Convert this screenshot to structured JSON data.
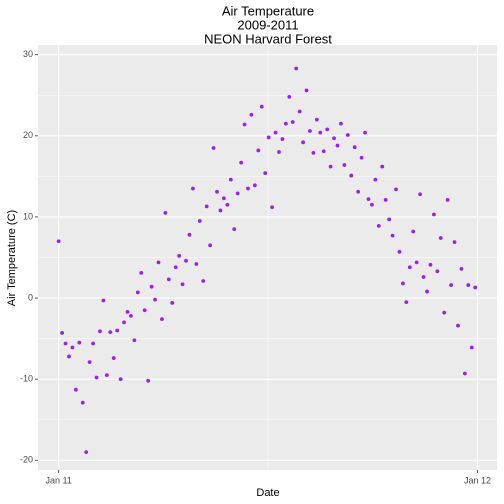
{
  "chart_data": {
    "type": "scatter",
    "title": [
      "Air Temperature",
      "2009-2011",
      "NEON Harvard Forest"
    ],
    "xlabel": "Date",
    "ylabel": "Air Temperature (C)",
    "color": "#9b1ff0",
    "grid": true,
    "xlim": [
      -18,
      382
    ],
    "ylim": [
      -21.2,
      31.2
    ],
    "xticks": [
      {
        "value": 0,
        "label": "Jan 11"
      },
      {
        "value": 365,
        "label": "Jan 12"
      }
    ],
    "yticks": [
      -20,
      -10,
      0,
      10,
      20,
      30
    ],
    "x": [
      0,
      3,
      6,
      9,
      12,
      15,
      18,
      21,
      24,
      27,
      30,
      33,
      36,
      39,
      42,
      45,
      48,
      51,
      54,
      57,
      60,
      63,
      66,
      69,
      72,
      75,
      78,
      81,
      84,
      87,
      90,
      93,
      96,
      99,
      102,
      105,
      108,
      111,
      114,
      117,
      120,
      123,
      126,
      129,
      132,
      135,
      138,
      141,
      144,
      147,
      150,
      153,
      156,
      159,
      162,
      165,
      168,
      171,
      174,
      177,
      180,
      183,
      186,
      189,
      192,
      195,
      198,
      201,
      204,
      207,
      210,
      213,
      216,
      219,
      222,
      225,
      228,
      231,
      234,
      237,
      240,
      243,
      246,
      249,
      252,
      255,
      258,
      261,
      264,
      267,
      270,
      273,
      276,
      279,
      282,
      285,
      288,
      291,
      294,
      297,
      300,
      303,
      306,
      309,
      312,
      315,
      318,
      321,
      324,
      327,
      330,
      333,
      336,
      339,
      342,
      345,
      348,
      351,
      354,
      357,
      360,
      363
    ],
    "values": [
      7,
      -4.3,
      -5.6,
      -7.2,
      -6.1,
      -11.3,
      -5.5,
      -12.9,
      -19,
      -7.9,
      -5.6,
      -9.8,
      -4.1,
      -0.3,
      -9.5,
      -4.2,
      -7.4,
      -4,
      -10,
      -3,
      -1.7,
      -2.2,
      -5.2,
      0.7,
      3.1,
      -1.5,
      -10.2,
      1.4,
      -0.2,
      4.4,
      -2.6,
      10.5,
      2.3,
      -0.6,
      3.8,
      5.2,
      1.7,
      4.6,
      7.8,
      13.5,
      4.2,
      9.5,
      2.1,
      11.3,
      6.5,
      18.5,
      13.1,
      10.8,
      12.3,
      11.5,
      14.6,
      8.5,
      12.9,
      16.7,
      21.4,
      13.5,
      22.6,
      13.9,
      18.2,
      23.6,
      15.4,
      19.8,
      11.2,
      20.4,
      18,
      19.6,
      21.5,
      24.8,
      21.7,
      28.3,
      23,
      19.2,
      25.6,
      20.6,
      17.9,
      22,
      20.4,
      18.1,
      20.8,
      16.2,
      19.7,
      18.8,
      21.5,
      16.4,
      20.1,
      15.1,
      18.6,
      13.1,
      17.3,
      20.4,
      12.2,
      11.5,
      14.6,
      8.9,
      16.2,
      12.1,
      9.7,
      7.7,
      13.4,
      5.7,
      1.8,
      -0.5,
      3.8,
      8.2,
      4.4,
      12.8,
      2.6,
      0.8,
      4.1,
      10.3,
      3.3,
      7.4,
      -1.8,
      12.1,
      1.6,
      6.9,
      -3.4,
      3.6,
      -9.3,
      1.6,
      -6.1,
      1.3
    ]
  }
}
